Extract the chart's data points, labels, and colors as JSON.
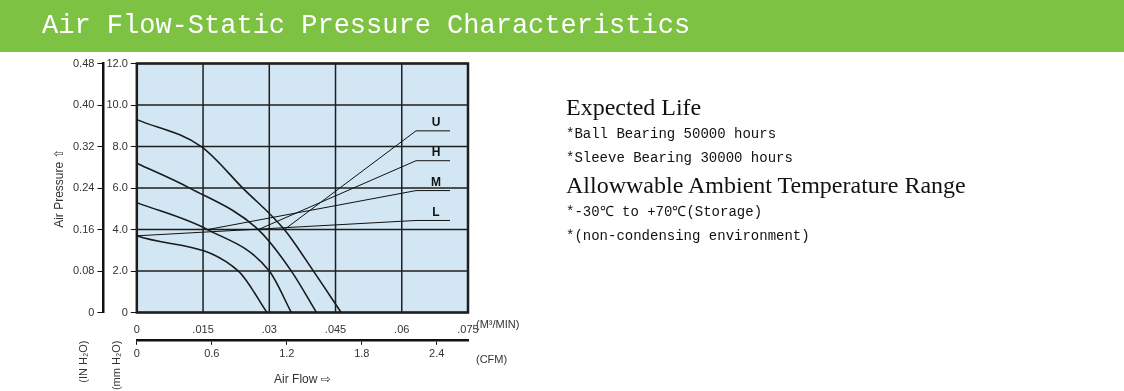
{
  "chart_data": {
    "type": "line",
    "title": "Air Flow-Static Pressure Characteristics",
    "xlabel": "(M³/MIN)",
    "x2label": "(CFM)",
    "ylabel": "(mm H₂O)",
    "y2label": "(IN H₂O)",
    "annotations": [
      "Air Pressure ⇧",
      "Air Flow ⇨",
      "Expected Life",
      "*Ball Bearing 50000 hours",
      "*Sleeve Bearing 30000 hours",
      "Allowwable Ambient Temperature Range",
      "*-30℃ to +70℃(Storage)",
      "*(non-condensing environment)"
    ],
    "series": [
      {
        "name": "U",
        "color": "#1a1a1a",
        "x": [
          0,
          0.0146,
          0.024,
          0.0334,
          0.04,
          0.0463
        ],
        "values": [
          9.3,
          8,
          6,
          4,
          2,
          0
        ]
      },
      {
        "name": "H",
        "color": "#1a1a1a",
        "x": [
          0,
          0.012,
          0.0275,
          0.035,
          0.0407
        ],
        "values": [
          7.2,
          6,
          4,
          2,
          0
        ]
      },
      {
        "name": "M",
        "color": "#1a1a1a",
        "x": [
          0,
          0.016,
          0.03,
          0.035
        ],
        "values": [
          5.3,
          4,
          2,
          0
        ]
      },
      {
        "name": "L",
        "color": "#1a1a1a",
        "x": [
          0,
          0.023,
          0.0295
        ],
        "values": [
          3.7,
          2,
          0
        ]
      }
    ],
    "xlim": [
      0,
      0.075
    ],
    "xticks": [
      0,
      {
        "value": 0.015,
        "label": ".015"
      },
      {
        "value": 0.03,
        "label": ".03"
      },
      {
        "value": 0.045,
        "label": ".045"
      },
      {
        "value": 0.06,
        "label": ".06"
      },
      {
        "value": 0.075,
        "label": ".075"
      }
    ],
    "x2lim": [
      0,
      2.65
    ],
    "x2ticks": [
      0,
      0.6,
      1.2,
      1.8,
      2.4
    ],
    "ylim": [
      0,
      12
    ],
    "yticks": [
      0,
      {
        "value": 2,
        "label": "2.0"
      },
      {
        "value": 4,
        "label": "4.0"
      },
      {
        "value": 6,
        "label": "6.0"
      },
      {
        "value": 8,
        "label": "8.0"
      },
      {
        "value": 10,
        "label": "10.0"
      },
      {
        "value": 12,
        "label": "12.0"
      }
    ],
    "y2lim": [
      0,
      0.48
    ],
    "y2ticks": [
      0,
      {
        "value": 0.08,
        "label": "0.08"
      },
      {
        "value": 0.16,
        "label": "0.16"
      },
      {
        "value": 0.24,
        "label": "0.24"
      },
      {
        "value": 0.32,
        "label": "0.32"
      },
      {
        "value": 0.4,
        "label": "0.40"
      },
      {
        "value": 0.48,
        "label": "0.48"
      }
    ],
    "grid": true,
    "marker": "none",
    "line_style": "solid"
  }
}
